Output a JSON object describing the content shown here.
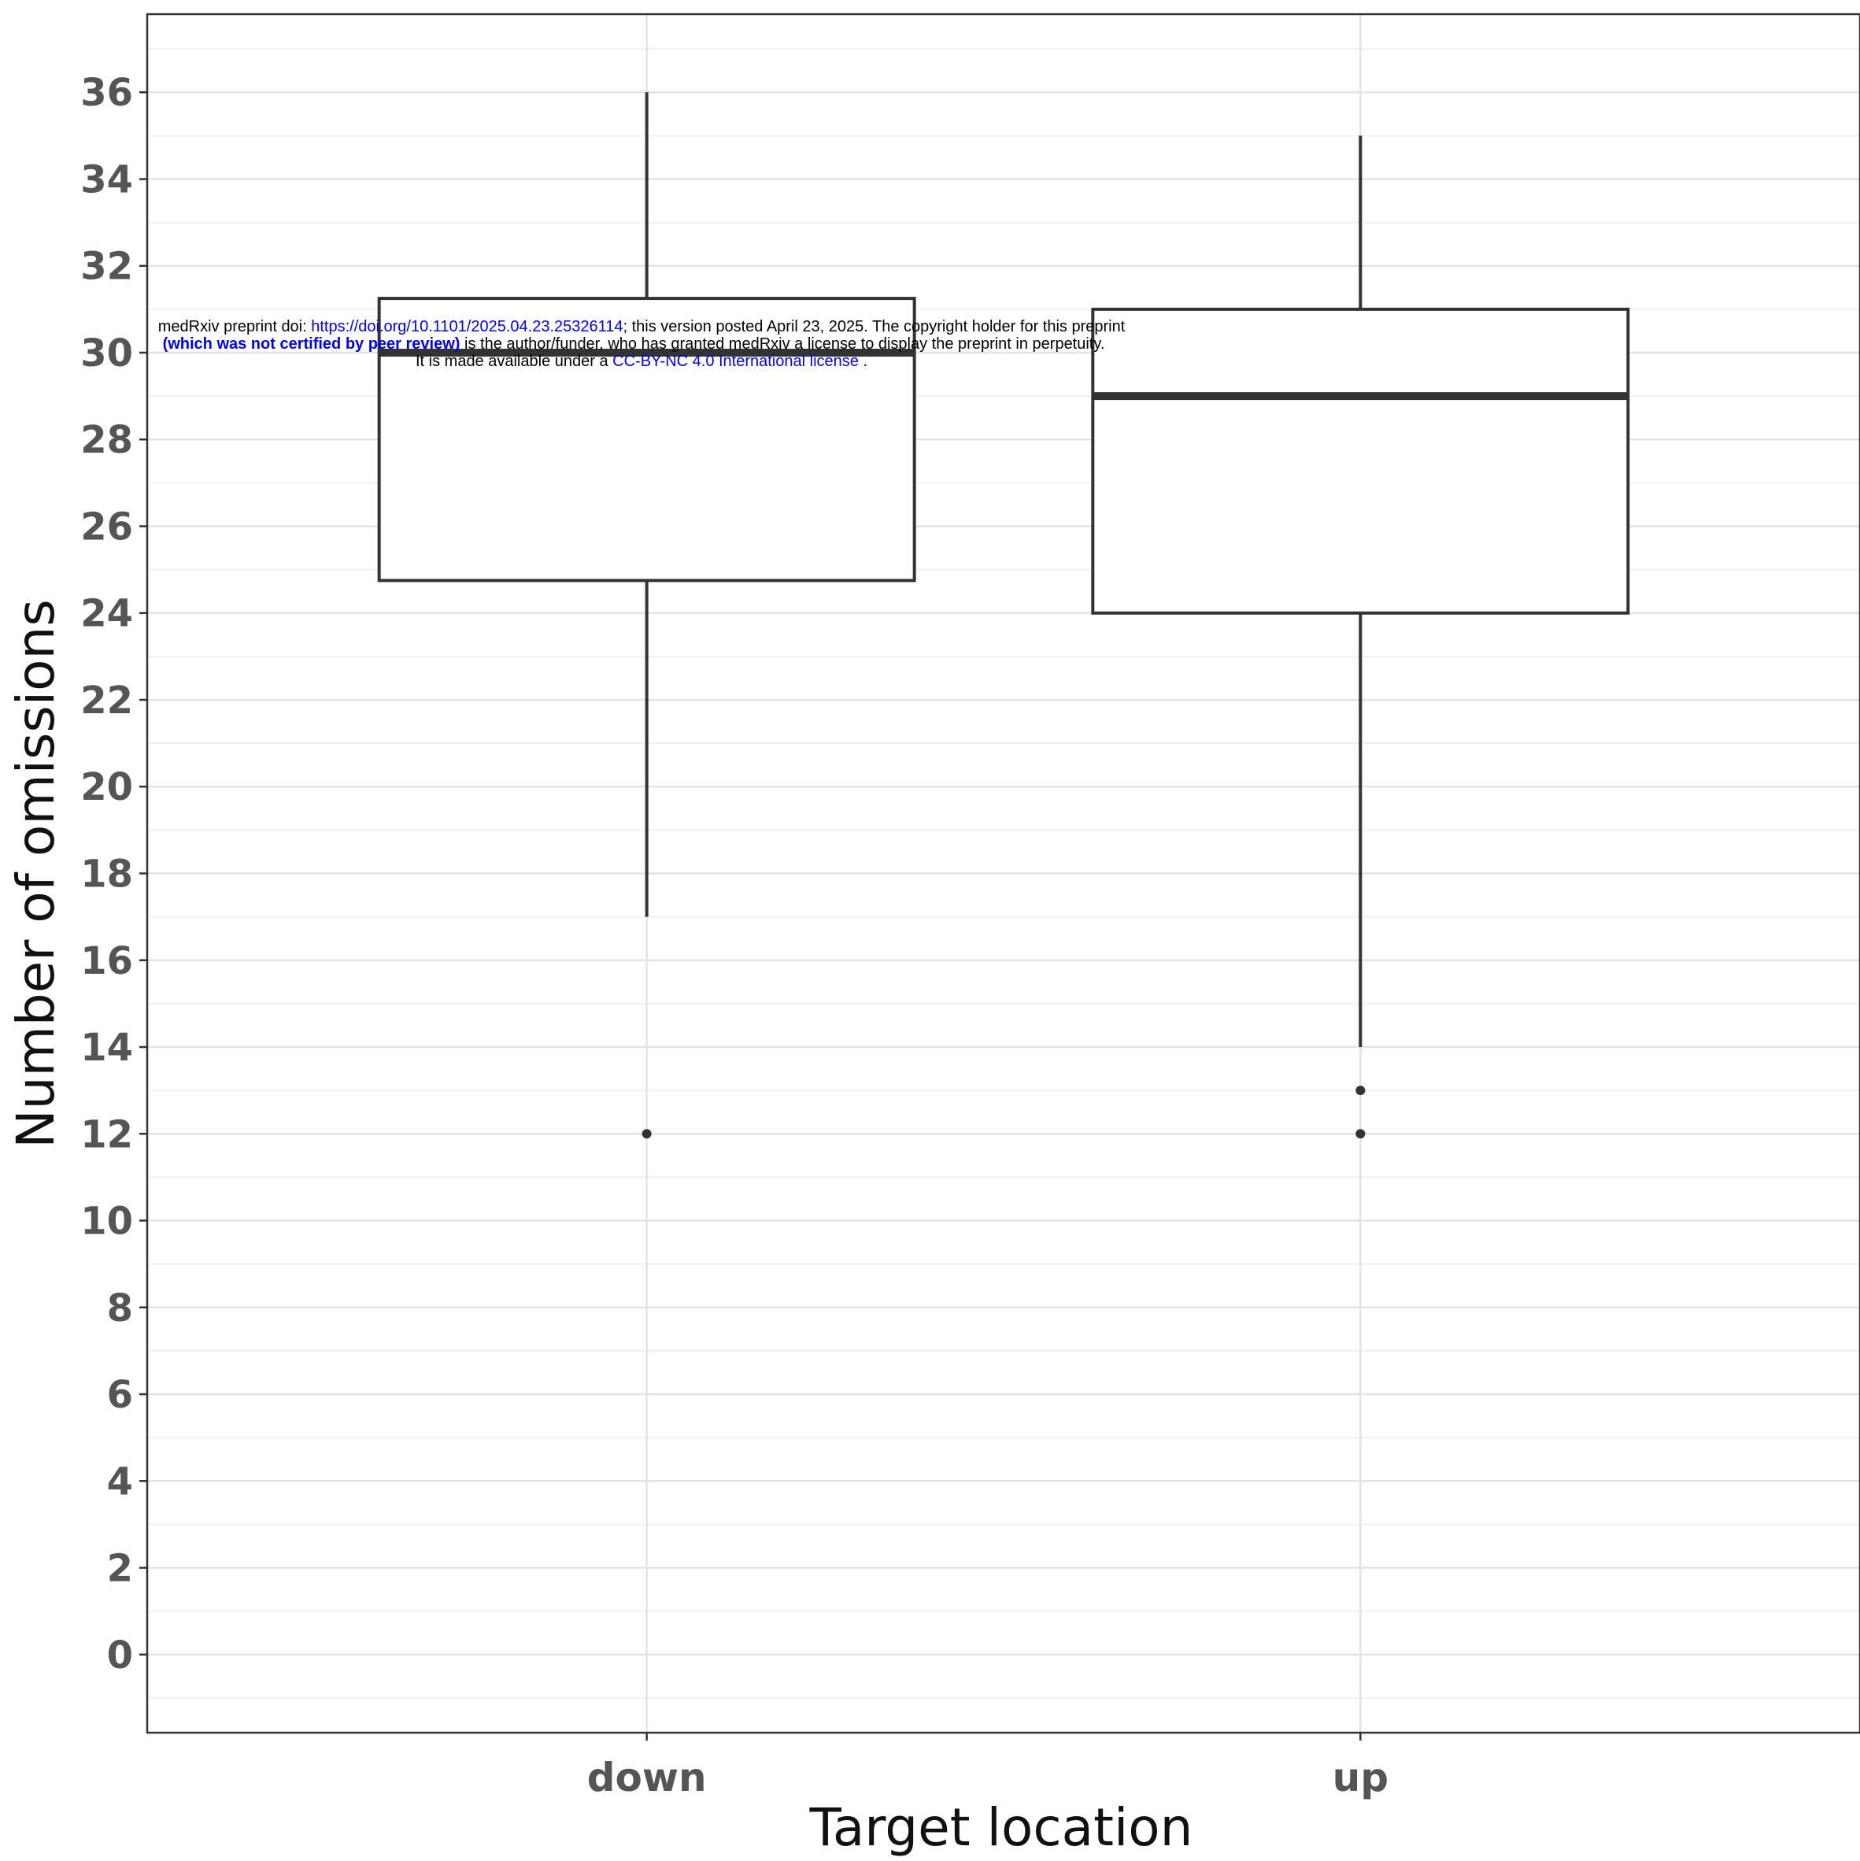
{
  "chart_data": {
    "type": "boxplot",
    "xlabel": "Target location",
    "ylabel": "Number of omissions",
    "categories": [
      "down",
      "up"
    ],
    "ylim": [
      -1.8,
      37.8
    ],
    "yticks": [
      0,
      2,
      4,
      6,
      8,
      10,
      12,
      14,
      16,
      18,
      20,
      22,
      24,
      26,
      28,
      30,
      32,
      34,
      36
    ],
    "grid": true,
    "boxes": [
      {
        "category": "down",
        "whisker_low": 17,
        "q1": 24.75,
        "median": 30,
        "q3": 31.25,
        "whisker_high": 36,
        "outliers": [
          12
        ]
      },
      {
        "category": "up",
        "whisker_low": 14,
        "q1": 24,
        "median": 29,
        "q3": 31,
        "whisker_high": 35,
        "outliers": [
          13,
          12
        ]
      }
    ]
  },
  "watermark": {
    "line1_prefix": "medRxiv preprint doi: ",
    "line1_link": "https://doi.org/10.1101/2025.04.23.25326114",
    "line1_suffix": "; this version posted April 23, 2025. The copyright holder for this preprint",
    "line2_bold": "(which was not certified by peer review)",
    "line2_rest": " is the author/funder, who has granted medRxiv a license to display the preprint in perpetuity.",
    "line3_prefix": "It is made available under a ",
    "line3_link": "CC-BY-NC 4.0 International license",
    "line3_suffix": " ."
  }
}
